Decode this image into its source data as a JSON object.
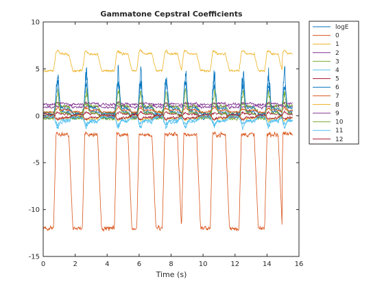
{
  "chart_data": {
    "type": "line",
    "title": "Gammatone Cepstral Coefficients",
    "xlabel": "Time (s)",
    "ylabel": "",
    "xlim": [
      0,
      16
    ],
    "ylim": [
      -15,
      10
    ],
    "xticks": [
      0,
      2,
      4,
      6,
      8,
      10,
      12,
      14,
      16
    ],
    "yticks": [
      10,
      5,
      0,
      -5,
      -10,
      -15
    ],
    "grid": false,
    "legend_position": "outside-top-right",
    "activity_segments": [
      [
        0.8,
        1.6
      ],
      [
        2.6,
        3.4
      ],
      [
        4.6,
        5.3
      ],
      [
        6.0,
        6.8
      ],
      [
        7.6,
        8.4
      ],
      [
        8.8,
        9.6
      ],
      [
        10.6,
        11.4
      ],
      [
        12.4,
        13.2
      ],
      [
        14.0,
        14.7
      ],
      [
        15.0,
        15.6
      ]
    ],
    "series": [
      {
        "name": "logE",
        "color": "#0072BD",
        "baseline": -0.2,
        "active": 0.4,
        "peak": 5.5,
        "noise": 0.15
      },
      {
        "name": "0",
        "color": "#D95319",
        "baseline": -12.0,
        "active": -2.0,
        "peak": -2.0,
        "noise": 0.25
      },
      {
        "name": "1",
        "color": "#EDB120",
        "baseline": 4.8,
        "active": 6.6,
        "peak": 7.0,
        "noise": 0.12
      },
      {
        "name": "2",
        "color": "#7E2F8E",
        "baseline": 1.2,
        "active": 1.0,
        "peak": 1.0,
        "noise": 0.12
      },
      {
        "name": "3",
        "color": "#77AC30",
        "baseline": 0.3,
        "active": 1.0,
        "peak": 1.4,
        "noise": 0.18
      },
      {
        "name": "4",
        "color": "#4DBEEE",
        "baseline": 0.0,
        "active": -0.6,
        "peak": -1.0,
        "noise": 0.2
      },
      {
        "name": "5",
        "color": "#A2142F",
        "baseline": -0.1,
        "active": 0.2,
        "peak": 0.4,
        "noise": 0.12
      },
      {
        "name": "6",
        "color": "#0072BD",
        "baseline": 0.2,
        "active": 0.8,
        "peak": 4.0,
        "noise": 0.15
      },
      {
        "name": "7",
        "color": "#D95319",
        "baseline": 0.4,
        "active": 0.6,
        "peak": 0.9,
        "noise": 0.12
      },
      {
        "name": "8",
        "color": "#EDB120",
        "baseline": 0.0,
        "active": -0.3,
        "peak": -0.5,
        "noise": 0.12
      },
      {
        "name": "9",
        "color": "#7E2F8E",
        "baseline": 0.9,
        "active": 1.3,
        "peak": 1.4,
        "noise": 0.12
      },
      {
        "name": "10",
        "color": "#77AC30",
        "baseline": -0.3,
        "active": 0.3,
        "peak": 3.0,
        "noise": 0.15
      },
      {
        "name": "11",
        "color": "#4DBEEE",
        "baseline": -0.1,
        "active": -0.5,
        "peak": -1.4,
        "noise": 0.15
      },
      {
        "name": "12",
        "color": "#A2142F",
        "baseline": 0.1,
        "active": -0.2,
        "peak": -0.4,
        "noise": 0.12
      }
    ]
  }
}
